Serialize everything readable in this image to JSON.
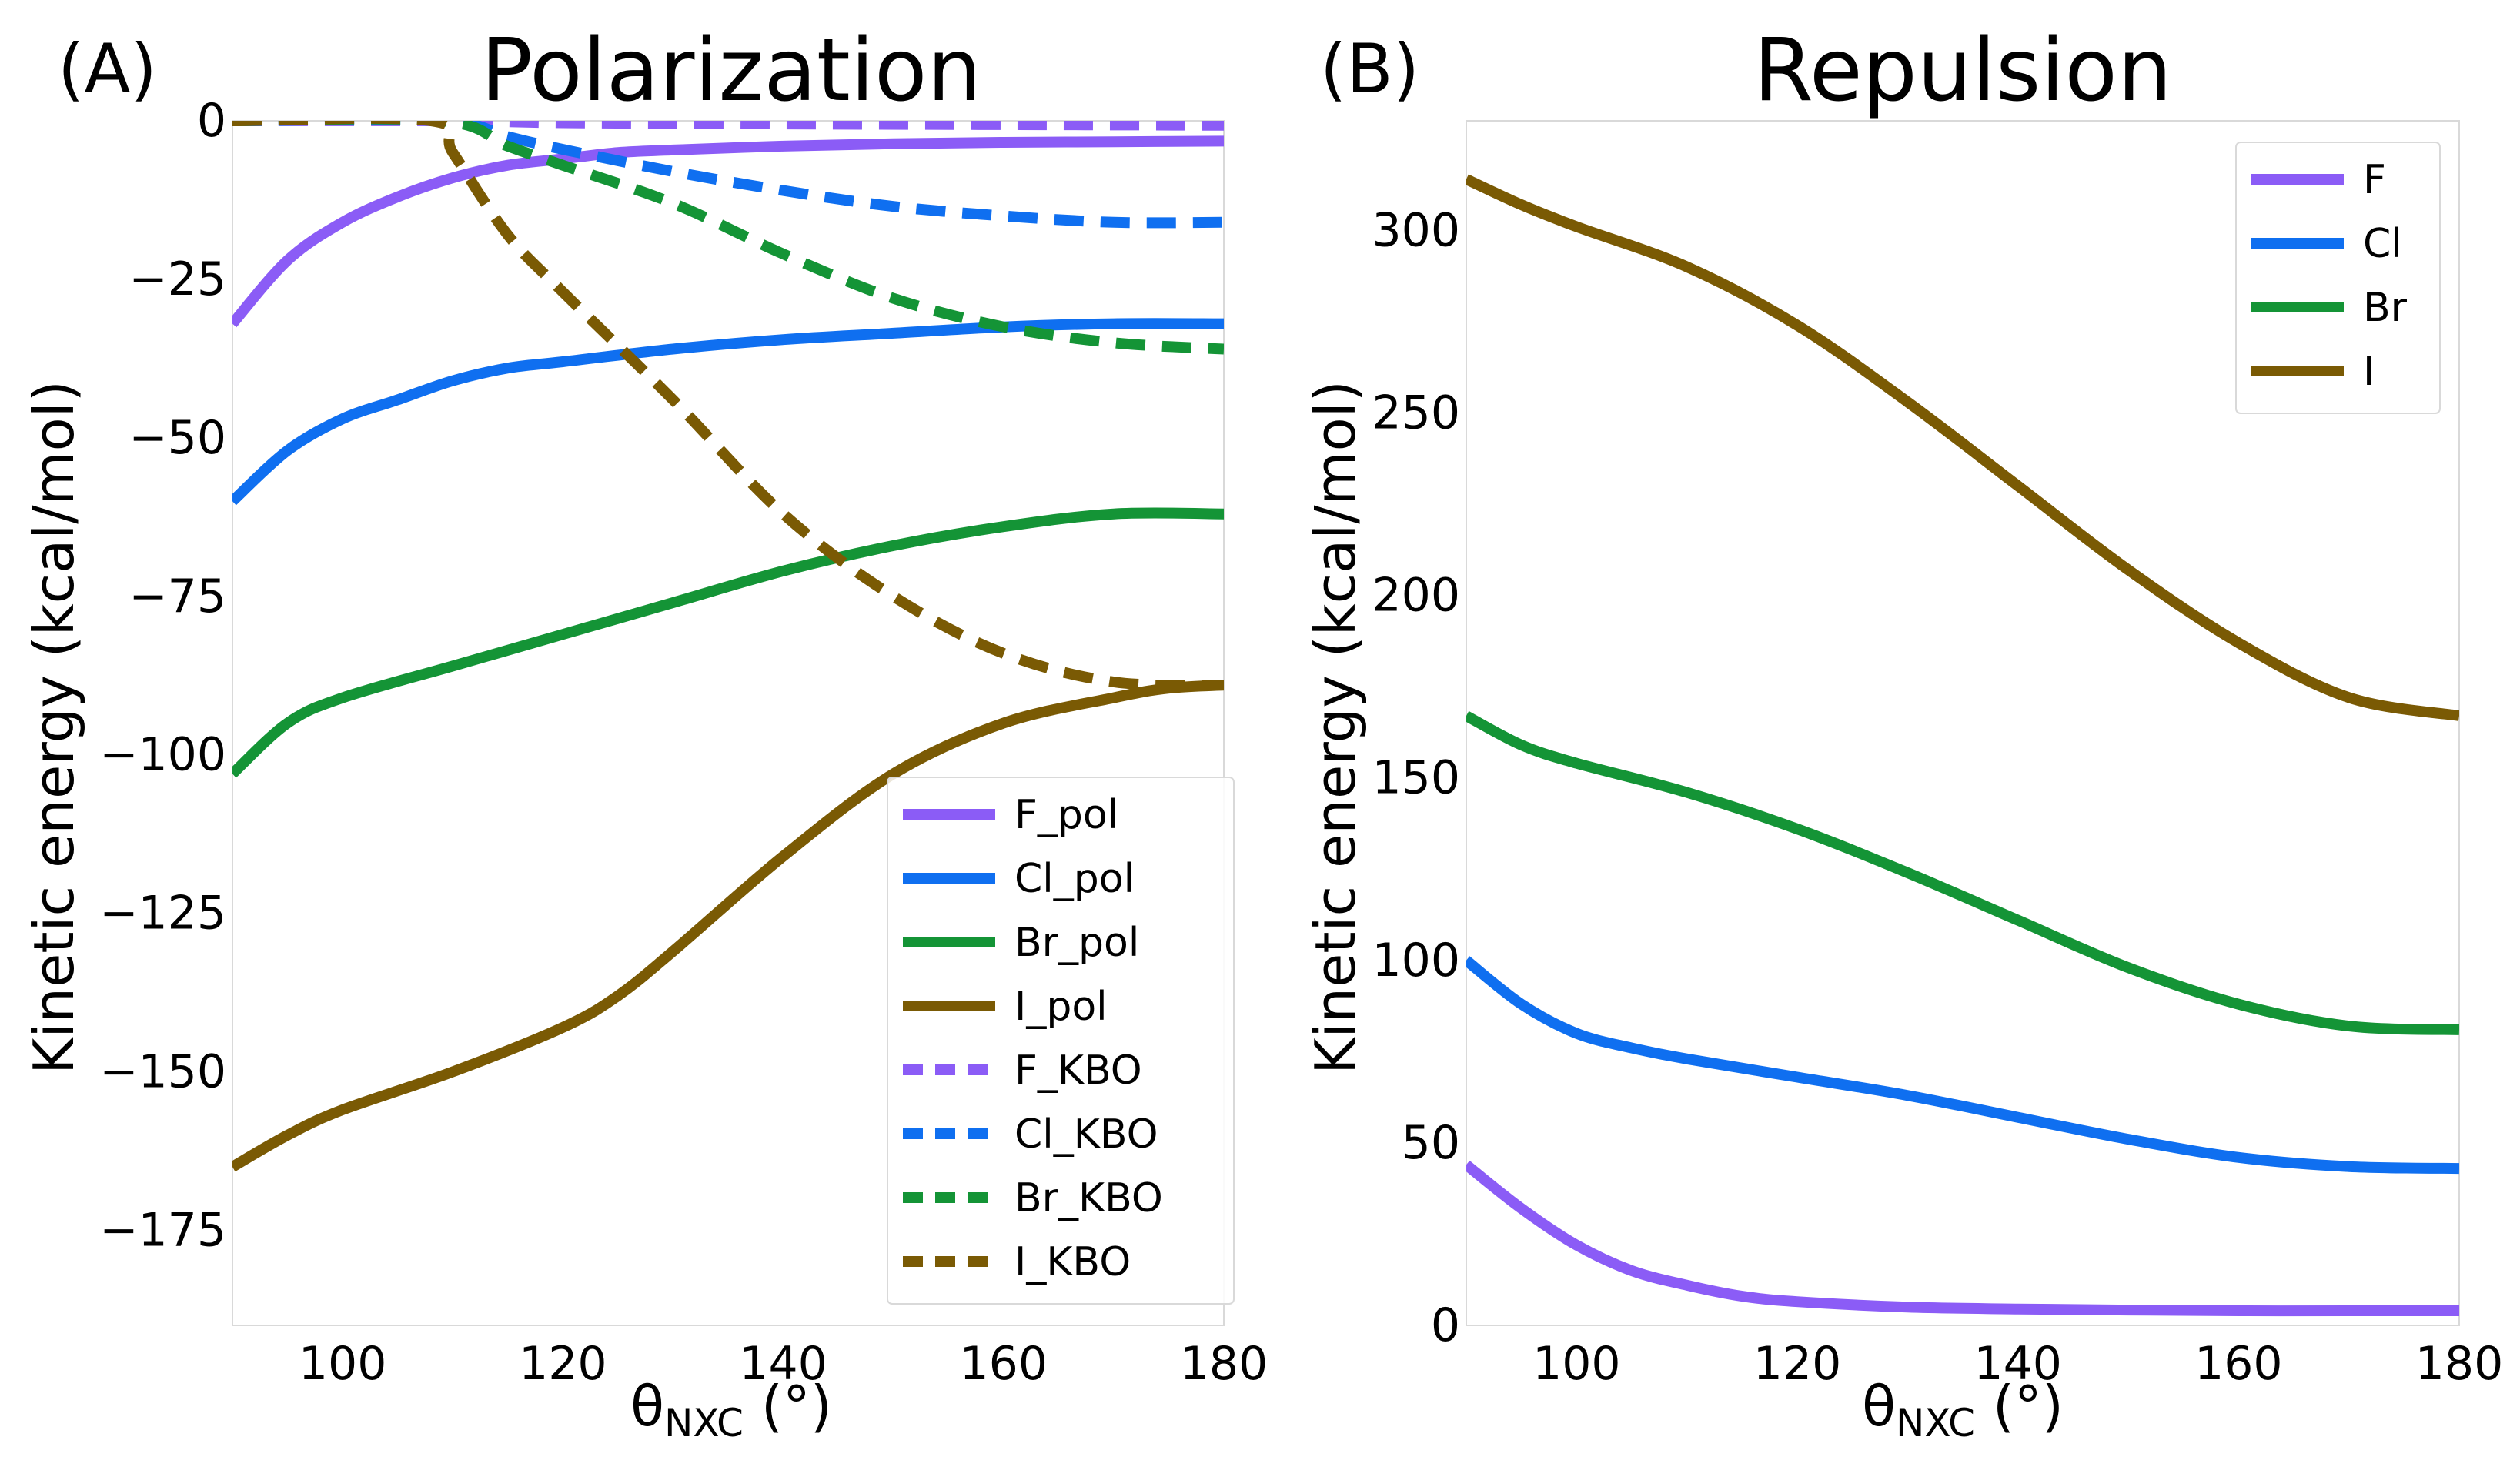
{
  "colors": {
    "F": "#8b5cf6",
    "Cl": "#0f6ff0",
    "Br": "#149436",
    "I": "#7a5a04"
  },
  "chart_data": [
    {
      "type": "line",
      "panel_label": "(A)",
      "title": "Polarization",
      "xlabel_main": "θ",
      "xlabel_sub": "NXC",
      "xlabel_unit": " (°)",
      "ylabel": "Kinetic energy (kcal/mol)",
      "xlim": [
        90,
        180
      ],
      "ylim": [
        -190,
        0
      ],
      "xticks": [
        100,
        120,
        140,
        160,
        180
      ],
      "yticks": [
        0,
        -25,
        -50,
        -75,
        -100,
        -125,
        -150,
        -175
      ],
      "ytick_labels": [
        "0",
        "−25",
        "−50",
        "−75",
        "−100",
        "−125",
        "−150",
        "−175"
      ],
      "grid": false,
      "legend_position": "lower-right",
      "series": [
        {
          "name": "F_pol",
          "color_key": "F",
          "dashed": false,
          "x": [
            90,
            95,
            100,
            105,
            110,
            115,
            120,
            125,
            130,
            140,
            150,
            160,
            170,
            180
          ],
          "y": [
            -32,
            -22,
            -16,
            -12,
            -9,
            -7,
            -6,
            -5,
            -4.6,
            -4,
            -3.6,
            -3.4,
            -3.3,
            -3.2
          ]
        },
        {
          "name": "Cl_pol",
          "color_key": "Cl",
          "dashed": false,
          "x": [
            90,
            95,
            100,
            105,
            110,
            115,
            120,
            130,
            140,
            150,
            160,
            170,
            180
          ],
          "y": [
            -60,
            -52,
            -47,
            -44,
            -41,
            -39,
            -38,
            -36,
            -34.5,
            -33.5,
            -32.5,
            -32,
            -32
          ]
        },
        {
          "name": "Br_pol",
          "color_key": "Br",
          "dashed": false,
          "x": [
            90,
            95,
            100,
            110,
            120,
            130,
            140,
            150,
            160,
            170,
            180
          ],
          "y": [
            -103,
            -95,
            -91,
            -86,
            -81,
            -76,
            -71,
            -67,
            -64,
            -62,
            -62
          ]
        },
        {
          "name": "I_pol",
          "color_key": "I",
          "dashed": false,
          "x": [
            90,
            95,
            100,
            110,
            120,
            125,
            130,
            140,
            150,
            160,
            170,
            175,
            180
          ],
          "y": [
            -165,
            -160,
            -156,
            -150,
            -143,
            -138,
            -131,
            -116,
            -103,
            -95,
            -91,
            -89.5,
            -89
          ]
        },
        {
          "name": "F_KBO",
          "color_key": "F",
          "dashed": true,
          "x": [
            90,
            110,
            120,
            140,
            160,
            180
          ],
          "y": [
            0,
            0,
            -0.3,
            -0.5,
            -0.6,
            -0.7
          ]
        },
        {
          "name": "Cl_KBO",
          "color_key": "Cl",
          "dashed": true,
          "x": [
            90,
            109,
            115,
            120,
            130,
            140,
            150,
            160,
            170,
            180
          ],
          "y": [
            0,
            0,
            -2.5,
            -4.5,
            -8,
            -11,
            -13.5,
            -15,
            -16,
            -16
          ]
        },
        {
          "name": "Br_KBO",
          "color_key": "Br",
          "dashed": true,
          "x": [
            90,
            109,
            115,
            120,
            130,
            140,
            150,
            160,
            170,
            180
          ],
          "y": [
            0,
            0,
            -4,
            -7,
            -13,
            -21,
            -28,
            -32.5,
            -35,
            -36
          ]
        },
        {
          "name": "I_KBO",
          "color_key": "I",
          "dashed": true,
          "x": [
            90,
            108,
            110,
            115,
            120,
            130,
            140,
            150,
            160,
            170,
            180
          ],
          "y": [
            0,
            0,
            -5,
            -18,
            -27,
            -44,
            -62,
            -75,
            -84,
            -88.5,
            -89
          ]
        }
      ]
    },
    {
      "type": "line",
      "panel_label": "(B)",
      "title": "Repulsion",
      "xlabel_main": "θ",
      "xlabel_sub": "NXC",
      "xlabel_unit": " (°)",
      "ylabel": "Kinetic energy (kcal/mol)",
      "xlim": [
        90,
        180
      ],
      "ylim": [
        0,
        330
      ],
      "xticks": [
        100,
        120,
        140,
        160,
        180
      ],
      "yticks": [
        0,
        50,
        100,
        150,
        200,
        250,
        300
      ],
      "ytick_labels": [
        "0",
        "50",
        "100",
        "150",
        "200",
        "250",
        "300"
      ],
      "grid": false,
      "legend_position": "top-right",
      "series": [
        {
          "name": "F",
          "color_key": "F",
          "dashed": false,
          "x": [
            90,
            95,
            100,
            105,
            110,
            115,
            120,
            130,
            140,
            150,
            160,
            170,
            180
          ],
          "y": [
            44,
            32,
            22,
            15,
            11,
            8,
            6.5,
            5,
            4.5,
            4.2,
            4,
            4,
            4
          ]
        },
        {
          "name": "Cl",
          "color_key": "Cl",
          "dashed": false,
          "x": [
            90,
            95,
            100,
            105,
            110,
            120,
            130,
            140,
            150,
            160,
            170,
            180
          ],
          "y": [
            100,
            88,
            80,
            76,
            73,
            68,
            63,
            57,
            51,
            46,
            43.5,
            43
          ]
        },
        {
          "name": "Br",
          "color_key": "Br",
          "dashed": false,
          "x": [
            90,
            95,
            100,
            110,
            120,
            130,
            140,
            150,
            160,
            170,
            180
          ],
          "y": [
            167,
            159,
            154,
            146,
            136,
            124,
            111,
            98,
            88,
            82,
            81
          ]
        },
        {
          "name": "I",
          "color_key": "I",
          "dashed": false,
          "x": [
            90,
            95,
            100,
            110,
            120,
            130,
            140,
            150,
            160,
            170,
            180
          ],
          "y": [
            314,
            307,
            301,
            290,
            274,
            253,
            230,
            207,
            187,
            172,
            167
          ]
        }
      ]
    }
  ]
}
